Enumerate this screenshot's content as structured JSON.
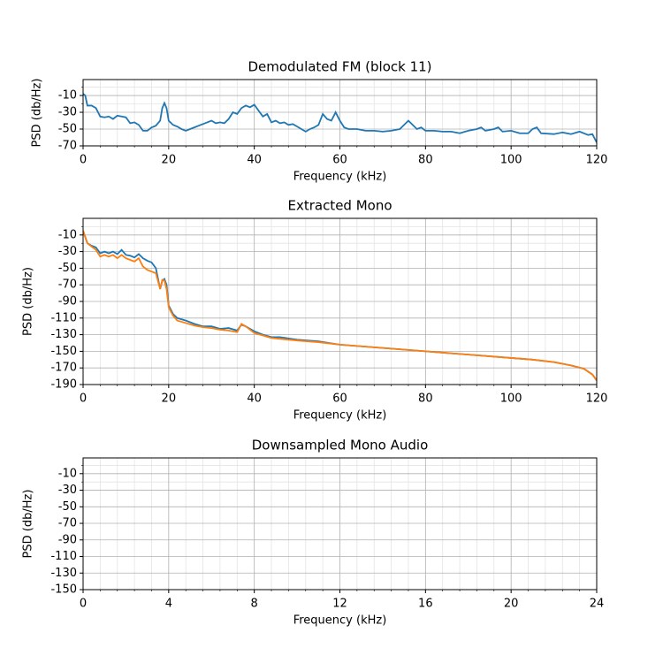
{
  "chart_data": [
    {
      "type": "line",
      "title": "Demodulated FM (block 11)",
      "xlabel": "Frequency (kHz)",
      "ylabel": "PSD (db/Hz)",
      "xlim": [
        0,
        120
      ],
      "ylim": [
        -70,
        9
      ],
      "xticks": [
        0,
        20,
        40,
        60,
        80,
        100,
        120
      ],
      "yticks": [
        -10,
        -30,
        -50,
        -70
      ],
      "grid": true,
      "minor_grid": true,
      "x": [
        0,
        0.5,
        1,
        2,
        3,
        4,
        5,
        6,
        7,
        8,
        9,
        10,
        11,
        12,
        13,
        14,
        15,
        16,
        17,
        18,
        18.5,
        19,
        19.5,
        20,
        21,
        22,
        23,
        24,
        25,
        26,
        27,
        28,
        29,
        30,
        31,
        32,
        33,
        34,
        35,
        36,
        37,
        38,
        39,
        40,
        41,
        42,
        43,
        44,
        45,
        46,
        47,
        48,
        49,
        50,
        51,
        52,
        53,
        54,
        55,
        56,
        57,
        58,
        59,
        60,
        61,
        62,
        64,
        66,
        68,
        70,
        72,
        74,
        75,
        76,
        77,
        78,
        79,
        80,
        82,
        84,
        86,
        88,
        90,
        92,
        93,
        94,
        96,
        97,
        98,
        100,
        102,
        104,
        105,
        106,
        107,
        110,
        112,
        114,
        116,
        118,
        119,
        120
      ],
      "series": [
        {
          "color": "#1f77b4",
          "values": [
            -8,
            -10,
            -22,
            -22,
            -25,
            -35,
            -36,
            -35,
            -38,
            -34,
            -35,
            -36,
            -43,
            -42,
            -45,
            -52,
            -52,
            -48,
            -46,
            -40,
            -25,
            -19,
            -25,
            -40,
            -45,
            -47,
            -50,
            -52,
            -50,
            -48,
            -46,
            -44,
            -42,
            -40,
            -43,
            -42,
            -43,
            -38,
            -30,
            -32,
            -25,
            -22,
            -24,
            -21,
            -28,
            -35,
            -32,
            -42,
            -40,
            -43,
            -42,
            -45,
            -44,
            -47,
            -50,
            -53,
            -50,
            -48,
            -45,
            -32,
            -38,
            -40,
            -30,
            -40,
            -48,
            -50,
            -50,
            -52,
            -52,
            -53,
            -52,
            -50,
            -45,
            -40,
            -45,
            -50,
            -48,
            -52,
            -52,
            -53,
            -53,
            -55,
            -52,
            -50,
            -48,
            -52,
            -50,
            -48,
            -53,
            -52,
            -55,
            -55,
            -50,
            -48,
            -55,
            -56,
            -54,
            -56,
            -53,
            -57,
            -56,
            -66
          ]
        }
      ]
    },
    {
      "type": "line",
      "title": "Extracted Mono",
      "xlabel": "Frequency (kHz)",
      "ylabel": "PSD (db/Hz)",
      "xlim": [
        0,
        120
      ],
      "ylim": [
        -190,
        10
      ],
      "xticks": [
        0,
        20,
        40,
        60,
        80,
        100,
        120
      ],
      "yticks": [
        -10,
        -30,
        -50,
        -70,
        -90,
        -110,
        -130,
        -150,
        -170,
        -190
      ],
      "grid": true,
      "minor_grid": true,
      "x": [
        0,
        1,
        2,
        3,
        4,
        5,
        6,
        7,
        8,
        9,
        10,
        11,
        12,
        13,
        14,
        15,
        16,
        17,
        18,
        18.5,
        19,
        19.5,
        20,
        21,
        22,
        24,
        26,
        28,
        30,
        32,
        34,
        36,
        37,
        38,
        40,
        42,
        44,
        46,
        50,
        55,
        60,
        70,
        80,
        90,
        100,
        105,
        110,
        114,
        117,
        119,
        120
      ],
      "series": [
        {
          "color": "#1f77b4",
          "values": [
            -5,
            -20,
            -23,
            -25,
            -32,
            -30,
            -32,
            -30,
            -33,
            -28,
            -34,
            -35,
            -37,
            -33,
            -38,
            -41,
            -43,
            -50,
            -75,
            -65,
            -63,
            -70,
            -95,
            -105,
            -110,
            -113,
            -117,
            -120,
            -120,
            -123,
            -122,
            -125,
            -118,
            -120,
            -126,
            -130,
            -133,
            -133,
            -136,
            -138,
            -142,
            -146,
            -150,
            -154,
            -158,
            -160,
            -163,
            -167,
            -171,
            -178,
            -185
          ]
        },
        {
          "color": "#ff7f0e",
          "values": [
            -5,
            -20,
            -24,
            -28,
            -36,
            -34,
            -36,
            -34,
            -38,
            -34,
            -38,
            -40,
            -42,
            -38,
            -48,
            -52,
            -54,
            -56,
            -75,
            -64,
            -65,
            -75,
            -97,
            -107,
            -113,
            -116,
            -119,
            -121,
            -122,
            -124,
            -125,
            -127,
            -117,
            -120,
            -128,
            -131,
            -134,
            -135,
            -137,
            -139,
            -142,
            -146,
            -150,
            -154,
            -158,
            -160,
            -163,
            -167,
            -171,
            -178,
            -185
          ]
        }
      ]
    },
    {
      "type": "line",
      "title": "Downsampled Mono Audio",
      "xlabel": "Frequency (kHz)",
      "ylabel": "PSD (db/Hz)",
      "xlim": [
        0,
        24
      ],
      "ylim": [
        -150,
        9
      ],
      "xticks": [
        0,
        4,
        8,
        12,
        16,
        20,
        24
      ],
      "yticks": [
        -10,
        -30,
        -50,
        -70,
        -90,
        -110,
        -130,
        -150
      ],
      "grid": true,
      "minor_grid": true,
      "x": [],
      "series": []
    }
  ]
}
